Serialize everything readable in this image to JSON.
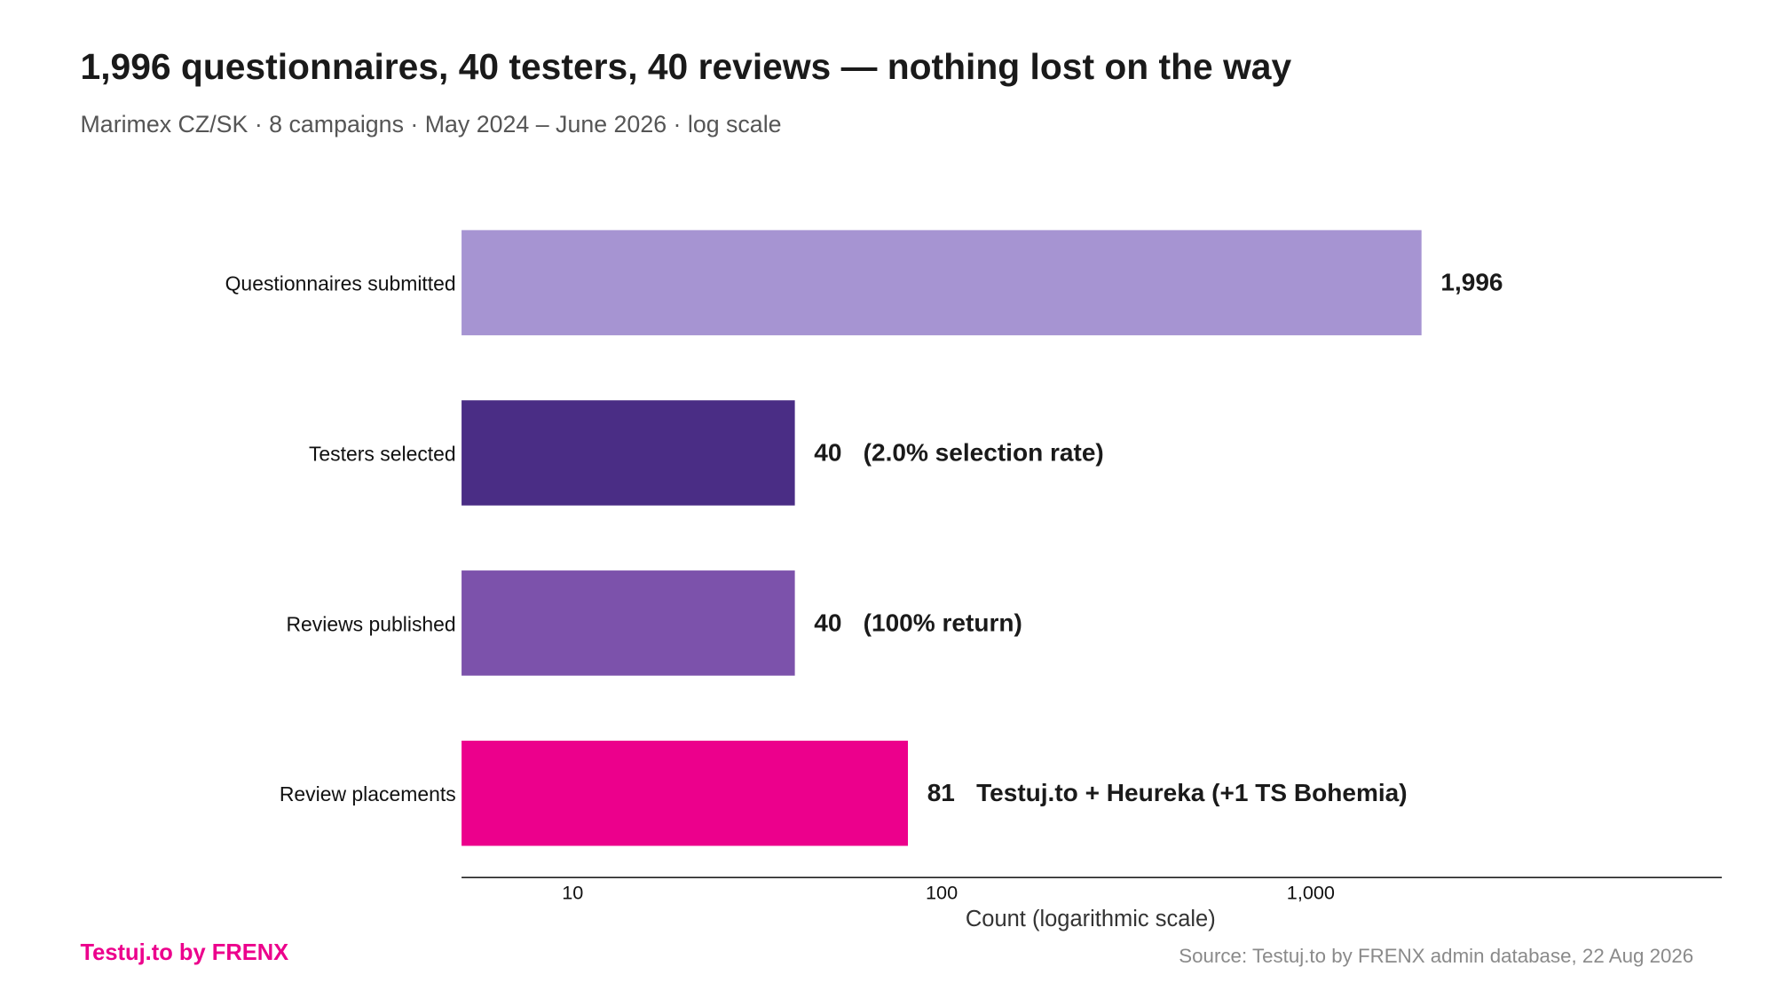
{
  "chart_data": {
    "type": "bar",
    "orientation": "horizontal",
    "title": "1,996 questionnaires, 40 testers, 40 reviews — nothing lost on the way",
    "subtitle": "Marimex CZ/SK · 8 campaigns · May 2024 – June 2026 · log scale",
    "xlabel": "Count (logarithmic scale)",
    "ylabel": "",
    "xscale": "log",
    "xlim": [
      5,
      13000
    ],
    "xticks": [
      10,
      100,
      1000
    ],
    "xtick_labels": [
      "10",
      "100",
      "1,000"
    ],
    "grid": false,
    "categories": [
      "Questionnaires submitted",
      "Testers selected",
      "Reviews published",
      "Review placements"
    ],
    "values": [
      1996,
      40,
      40,
      81
    ],
    "value_labels": [
      "1,996",
      "40",
      "40",
      "81"
    ],
    "annotations": [
      "",
      "(2.0% selection rate)",
      "(100% return)",
      "Testuj.to + Heureka (+1 TS Bohemia)"
    ],
    "colors": [
      "#a694d2",
      "#4a2d85",
      "#7c52ab",
      "#ec008c"
    ]
  },
  "branding": {
    "logo_text": "Testuj.to by FRENX",
    "source": "Source: Testuj.to by FRENX admin database, 22 Aug 2026"
  },
  "colors": {
    "brand_pink": "#ec008c",
    "text": "#1a1a1a",
    "muted": "#555555",
    "source_gray": "#8a8a8a"
  }
}
